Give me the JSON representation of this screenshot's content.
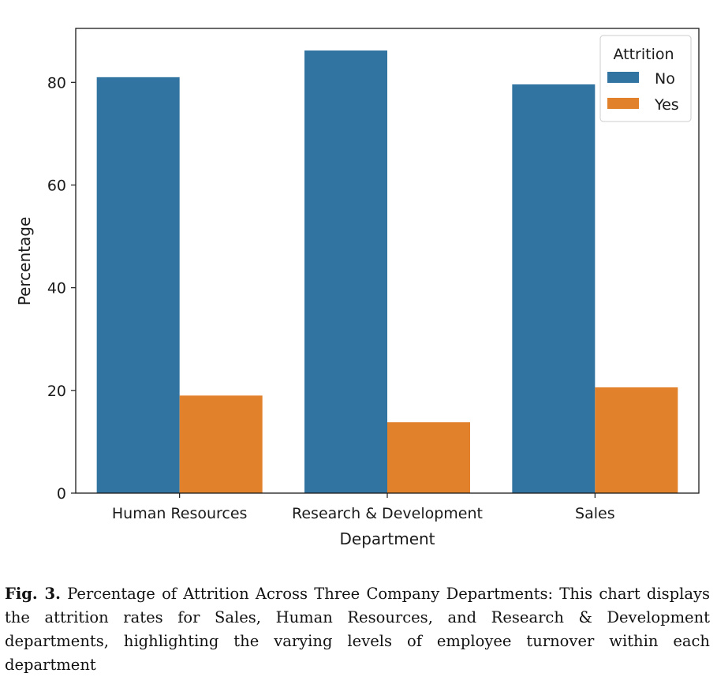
{
  "chart_data": {
    "type": "bar",
    "categories": [
      "Human Resources",
      "Research & Development",
      "Sales"
    ],
    "series": [
      {
        "name": "No",
        "values": [
          81,
          86.2,
          79.6
        ],
        "color": "#3274a1"
      },
      {
        "name": "Yes",
        "values": [
          19,
          13.8,
          20.6
        ],
        "color": "#e1812c"
      }
    ],
    "xlabel": "Department",
    "ylabel": "Percentage",
    "ylim": [
      0,
      90.5
    ],
    "yticks": [
      0,
      20,
      40,
      60,
      80
    ],
    "legend": {
      "title": "Attrition",
      "placement": "top-right"
    },
    "grid": false
  },
  "caption": {
    "label": "Fig. 3.",
    "text": "Percentage of Attrition Across Three Company Departments: This chart displays the attrition rates for Sales, Human Resources, and Research & Development departments, highlighting the varying levels of employee turnover within each department"
  }
}
